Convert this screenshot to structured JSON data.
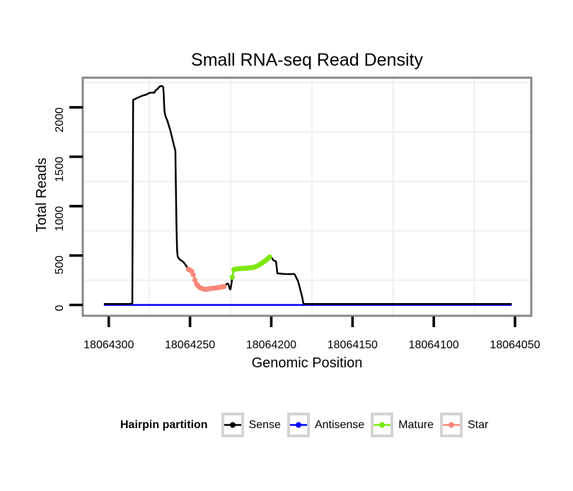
{
  "title": "Small RNA-seq Read Density",
  "axes": {
    "x": {
      "label": "Genomic Position",
      "ticks": [
        18064300,
        18064250,
        18064200,
        18064150,
        18064100,
        18064050
      ],
      "tick_labels": [
        "18064300",
        "18064250",
        "18064200",
        "18064150",
        "18064100",
        "18064050"
      ],
      "gridlines": [
        18064275,
        18064225,
        18064175,
        18064125,
        18064075
      ]
    },
    "y": {
      "label": "Total Reads",
      "ticks": [
        0,
        500,
        1000,
        1500,
        2000
      ],
      "tick_labels": [
        "0",
        "500",
        "1000",
        "1500",
        "2000"
      ],
      "gridlines": [
        250,
        750,
        1250,
        1750,
        2250
      ]
    }
  },
  "legend": {
    "title": "Hairpin partition",
    "entries": [
      {
        "label": "Sense",
        "color": "#000000"
      },
      {
        "label": "Antisense",
        "color": "#0000FF"
      },
      {
        "label": "Mature",
        "color": "#7CE810"
      },
      {
        "label": "Star",
        "color": "#F8877A"
      }
    ]
  },
  "chart_data": {
    "type": "line",
    "title": "Small RNA-seq Read Density",
    "xlabel": "Genomic Position",
    "ylabel": "Total Reads",
    "xlim": [
      18064316,
      18064040
    ],
    "ylim": [
      -110,
      2300
    ],
    "x_reversed": true,
    "grid": true,
    "legend_position": "bottom",
    "series": [
      {
        "name": "Antisense",
        "color": "#0000FF",
        "style": "line",
        "points": [
          [
            18064303,
            0
          ],
          [
            18064052,
            0
          ]
        ]
      },
      {
        "name": "Sense",
        "color": "#000000",
        "style": "line",
        "points": [
          [
            18064303,
            10
          ],
          [
            18064287,
            10
          ],
          [
            18064285.5,
            15
          ],
          [
            18064285,
            2075
          ],
          [
            18064283,
            2092
          ],
          [
            18064281,
            2106
          ],
          [
            18064279,
            2120
          ],
          [
            18064277,
            2128
          ],
          [
            18064275,
            2146
          ],
          [
            18064273,
            2150
          ],
          [
            18064272,
            2148
          ],
          [
            18064271,
            2176
          ],
          [
            18064270,
            2185
          ],
          [
            18064269,
            2206
          ],
          [
            18064268,
            2216
          ],
          [
            18064267,
            2214
          ],
          [
            18064266.5,
            2206
          ],
          [
            18064266.2,
            2140
          ],
          [
            18064266,
            2050
          ],
          [
            18064265.7,
            1960
          ],
          [
            18064265.4,
            1935
          ],
          [
            18064265,
            1906
          ],
          [
            18064264,
            1868
          ],
          [
            18064262,
            1760
          ],
          [
            18064260,
            1622
          ],
          [
            18064259.4,
            1586
          ],
          [
            18064259,
            1556
          ],
          [
            18064258.7,
            1200
          ],
          [
            18064258.4,
            860
          ],
          [
            18064258.1,
            640
          ],
          [
            18064257.9,
            540
          ],
          [
            18064257.6,
            492
          ],
          [
            18064257,
            472
          ],
          [
            18064256,
            456
          ],
          [
            18064255,
            446
          ],
          [
            18064254,
            432
          ],
          [
            18064253,
            412
          ],
          [
            18064252,
            386
          ],
          [
            18064251,
            360
          ],
          [
            18064250,
            352
          ],
          [
            18064249,
            342
          ],
          [
            18064248,
            305
          ],
          [
            18064247,
            252
          ],
          [
            18064246,
            212
          ],
          [
            18064245,
            192
          ],
          [
            18064244,
            176
          ],
          [
            18064243,
            168
          ],
          [
            18064242,
            163
          ],
          [
            18064241,
            158
          ],
          [
            18064240,
            158
          ],
          [
            18064239,
            161
          ],
          [
            18064238,
            164
          ],
          [
            18064237,
            166
          ],
          [
            18064236,
            168
          ],
          [
            18064235,
            170
          ],
          [
            18064234,
            172
          ],
          [
            18064233,
            175
          ],
          [
            18064232,
            177
          ],
          [
            18064231,
            180
          ],
          [
            18064230,
            183
          ],
          [
            18064229,
            186
          ],
          [
            18064228,
            203
          ],
          [
            18064227,
            216
          ],
          [
            18064226.4,
            212
          ],
          [
            18064225.6,
            163
          ],
          [
            18064225.1,
            157
          ],
          [
            18064224.5,
            216
          ],
          [
            18064224,
            280
          ],
          [
            18064223,
            357
          ],
          [
            18064222,
            362
          ],
          [
            18064221,
            365
          ],
          [
            18064220,
            367
          ],
          [
            18064219,
            368
          ],
          [
            18064218,
            369
          ],
          [
            18064217,
            370
          ],
          [
            18064216,
            371
          ],
          [
            18064215,
            372
          ],
          [
            18064214,
            374
          ],
          [
            18064213,
            376
          ],
          [
            18064212,
            378
          ],
          [
            18064211,
            380
          ],
          [
            18064210,
            385
          ],
          [
            18064209,
            392
          ],
          [
            18064208,
            400
          ],
          [
            18064207,
            410
          ],
          [
            18064206,
            420
          ],
          [
            18064205,
            432
          ],
          [
            18064204,
            444
          ],
          [
            18064203,
            456
          ],
          [
            18064202,
            470
          ],
          [
            18064201,
            485
          ],
          [
            18064200.4,
            487
          ],
          [
            18064200,
            480
          ],
          [
            18064199.3,
            469
          ],
          [
            18064198.9,
            455
          ],
          [
            18064198.4,
            448
          ],
          [
            18064197.1,
            441
          ],
          [
            18064196.8,
            405
          ],
          [
            18064196.4,
            340
          ],
          [
            18064196.2,
            319
          ],
          [
            18064195,
            318
          ],
          [
            18064193,
            315
          ],
          [
            18064191,
            313
          ],
          [
            18064189,
            312
          ],
          [
            18064187,
            313
          ],
          [
            18064186,
            314
          ],
          [
            18064185.4,
            305
          ],
          [
            18064185,
            290
          ],
          [
            18064184.4,
            269
          ],
          [
            18064183.5,
            240
          ],
          [
            18064182.7,
            190
          ],
          [
            18064181.8,
            133
          ],
          [
            18064180.9,
            76
          ],
          [
            18064180.5,
            33
          ],
          [
            18064180.1,
            11
          ],
          [
            18064179.7,
            10
          ],
          [
            18064052,
            10
          ]
        ]
      },
      {
        "name": "Mature",
        "color": "#7CE810",
        "style": "line+points",
        "points": [
          [
            18064224,
            280
          ],
          [
            18064223,
            357
          ],
          [
            18064222,
            362
          ],
          [
            18064221,
            365
          ],
          [
            18064220,
            367
          ],
          [
            18064219,
            368
          ],
          [
            18064218,
            369
          ],
          [
            18064217,
            370
          ],
          [
            18064216,
            371
          ],
          [
            18064215,
            372
          ],
          [
            18064214,
            374
          ],
          [
            18064213,
            376
          ],
          [
            18064212,
            378
          ],
          [
            18064211,
            380
          ],
          [
            18064210,
            385
          ],
          [
            18064209,
            392
          ],
          [
            18064208,
            400
          ],
          [
            18064207,
            410
          ],
          [
            18064206,
            420
          ],
          [
            18064205,
            432
          ],
          [
            18064204,
            444
          ],
          [
            18064203,
            456
          ],
          [
            18064202,
            470
          ],
          [
            18064201,
            485
          ]
        ]
      },
      {
        "name": "Star",
        "color": "#F8877A",
        "style": "line+points",
        "points": [
          [
            18064251,
            360
          ],
          [
            18064250,
            352
          ],
          [
            18064249,
            342
          ],
          [
            18064248,
            305
          ],
          [
            18064247,
            252
          ],
          [
            18064246,
            212
          ],
          [
            18064245,
            192
          ],
          [
            18064244,
            176
          ],
          [
            18064243,
            168
          ],
          [
            18064242,
            163
          ],
          [
            18064241,
            158
          ],
          [
            18064240,
            158
          ],
          [
            18064239,
            161
          ],
          [
            18064238,
            164
          ],
          [
            18064237,
            166
          ],
          [
            18064236,
            168
          ],
          [
            18064235,
            170
          ],
          [
            18064234,
            172
          ],
          [
            18064233,
            175
          ],
          [
            18064232,
            177
          ],
          [
            18064231,
            180
          ],
          [
            18064230,
            183
          ],
          [
            18064229,
            186
          ]
        ]
      }
    ]
  }
}
